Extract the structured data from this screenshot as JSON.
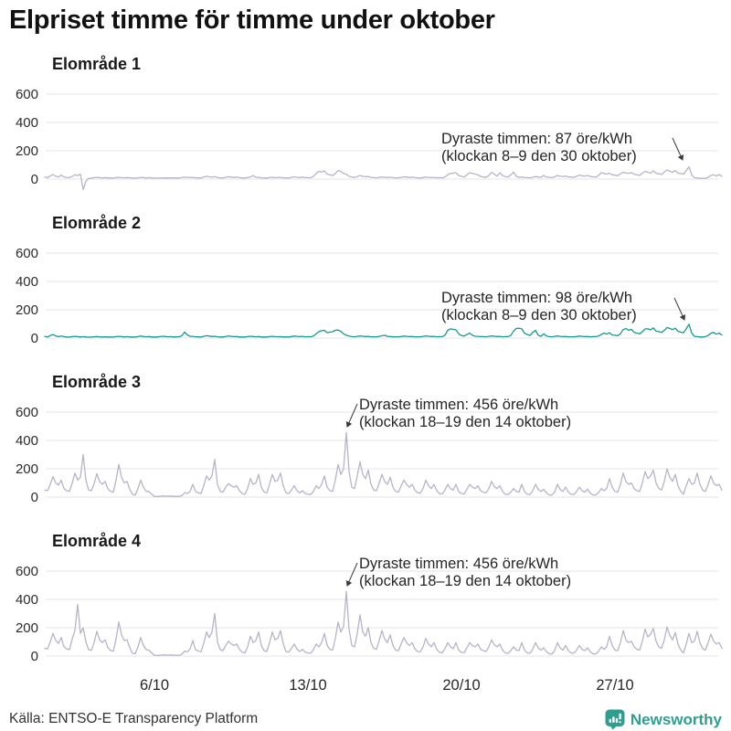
{
  "title": "Elpriset timme för timme under oktober",
  "source": "Källa: ENTSO-E Transparency Platform",
  "brand": {
    "name": "Newsworthy",
    "color": "#2f9e8f"
  },
  "colors": {
    "line_default": "#b6b4ca",
    "line_se2": "#169a8c",
    "grid": "#e4e4ea",
    "text": "#1a1a1a"
  },
  "chart_data": {
    "type": "line",
    "title": "Elpriset timme för timme under oktober",
    "unit": "öre/kWh",
    "resolution_hours": 3,
    "x_range": [
      "1/10",
      "31/10"
    ],
    "ylim": [
      -100,
      650
    ],
    "grid": true,
    "yticks": [
      "600",
      "400",
      "200",
      "0"
    ],
    "xticks": [
      "6/10",
      "13/10",
      "20/10",
      "27/10"
    ],
    "xtick_days": [
      6,
      13,
      20,
      27
    ],
    "panels": [
      {
        "label": "Elområde 1",
        "color": "#b6b4ca",
        "max_value": 87,
        "annotation": {
          "line1": "Dyraste timmen: 87 öre/kWh",
          "line2": "(klockan 8–9 den 30 oktober)"
        },
        "values": [
          15,
          10,
          22,
          32,
          20,
          14,
          28,
          15,
          12,
          10,
          20,
          30,
          25,
          35,
          -75,
          -15,
          5,
          6,
          10,
          12,
          10,
          8,
          10,
          8,
          8,
          7,
          10,
          12,
          10,
          9,
          11,
          9,
          8,
          7,
          9,
          11,
          10,
          8,
          10,
          8,
          7,
          7,
          8,
          9,
          8,
          8,
          9,
          8,
          8,
          8,
          10,
          14,
          12,
          10,
          12,
          9,
          9,
          8,
          14,
          20,
          16,
          13,
          18,
          11,
          9,
          8,
          12,
          17,
          14,
          11,
          14,
          10,
          8,
          8,
          11,
          15,
          25,
          12,
          13,
          9,
          8,
          8,
          10,
          13,
          11,
          10,
          12,
          9,
          9,
          8,
          12,
          16,
          13,
          11,
          14,
          10,
          10,
          9,
          20,
          40,
          55,
          50,
          58,
          35,
          30,
          25,
          40,
          60,
          55,
          40,
          35,
          20,
          15,
          12,
          18,
          25,
          20,
          16,
          18,
          12,
          10,
          9,
          12,
          15,
          13,
          11,
          13,
          10,
          9,
          9,
          12,
          16,
          14,
          11,
          14,
          10,
          9,
          8,
          11,
          14,
          12,
          10,
          12,
          9,
          10,
          9,
          14,
          30,
          40,
          42,
          45,
          25,
          20,
          15,
          30,
          45,
          40,
          35,
          30,
          18,
          15,
          12,
          25,
          48,
          35,
          20,
          45,
          25,
          18,
          14,
          30,
          50,
          20,
          12,
          15,
          10,
          10,
          9,
          13,
          18,
          15,
          12,
          25,
          15,
          12,
          10,
          16,
          25,
          20,
          18,
          22,
          15,
          14,
          12,
          20,
          28,
          24,
          20,
          26,
          18,
          16,
          14,
          25,
          45,
          40,
          35,
          42,
          30,
          28,
          24,
          38,
          48,
          44,
          40,
          46,
          34,
          30,
          26,
          42,
          55,
          48,
          42,
          58,
          40,
          38,
          32,
          50,
          65,
          55,
          48,
          60,
          42,
          40,
          35,
          60,
          87,
          30,
          10,
          8,
          6,
          5,
          6,
          12,
          25,
          30,
          22,
          32,
          20
        ]
      },
      {
        "label": "Elområde 2",
        "color": "#169a8c",
        "max_value": 98,
        "annotation": {
          "line1": "Dyraste timmen: 98 öre/kWh",
          "line2": "(klockan 8–9 den 30 oktober)"
        },
        "values": [
          12,
          8,
          18,
          25,
          15,
          10,
          14,
          10,
          8,
          7,
          10,
          12,
          10,
          8,
          10,
          8,
          7,
          7,
          9,
          11,
          9,
          8,
          9,
          8,
          8,
          7,
          10,
          12,
          10,
          8,
          10,
          8,
          8,
          8,
          10,
          14,
          11,
          9,
          11,
          8,
          8,
          8,
          10,
          13,
          11,
          9,
          10,
          8,
          9,
          9,
          16,
          42,
          22,
          12,
          12,
          9,
          9,
          8,
          12,
          17,
          14,
          11,
          13,
          9,
          8,
          8,
          11,
          15,
          12,
          10,
          11,
          8,
          8,
          8,
          10,
          13,
          11,
          9,
          11,
          8,
          8,
          8,
          10,
          12,
          10,
          9,
          10,
          8,
          9,
          8,
          11,
          14,
          12,
          10,
          12,
          9,
          10,
          9,
          15,
          30,
          45,
          52,
          55,
          38,
          42,
          45,
          55,
          57,
          48,
          30,
          20,
          14,
          10,
          9,
          12,
          15,
          13,
          11,
          12,
          9,
          9,
          9,
          12,
          16,
          20,
          12,
          11,
          9,
          9,
          9,
          11,
          14,
          12,
          10,
          11,
          9,
          9,
          9,
          12,
          15,
          13,
          11,
          12,
          9,
          10,
          10,
          20,
          55,
          65,
          62,
          58,
          30,
          18,
          14,
          25,
          35,
          20,
          13,
          12,
          10,
          10,
          9,
          12,
          15,
          13,
          11,
          12,
          9,
          10,
          10,
          18,
          50,
          68,
          70,
          65,
          35,
          25,
          18,
          40,
          55,
          20,
          12,
          30,
          15,
          10,
          9,
          12,
          15,
          12,
          10,
          11,
          9,
          9,
          9,
          11,
          14,
          12,
          10,
          11,
          9,
          10,
          10,
          14,
          25,
          35,
          28,
          38,
          22,
          20,
          16,
          30,
          60,
          68,
          55,
          62,
          40,
          35,
          30,
          45,
          65,
          65,
          58,
          72,
          50,
          45,
          40,
          55,
          75,
          68,
          60,
          70,
          48,
          42,
          38,
          65,
          98,
          35,
          12,
          10,
          8,
          8,
          10,
          18,
          35,
          40,
          28,
          35,
          22
        ]
      },
      {
        "label": "Elområde 3",
        "color": "#b6b4ca",
        "max_value": 456,
        "annotation": {
          "line1": "Dyraste timmen: 456 öre/kWh",
          "line2": "(klockan 18–19 den 14 oktober)"
        },
        "values": [
          50,
          45,
          90,
          145,
          100,
          85,
          120,
          60,
          45,
          40,
          100,
          170,
          120,
          140,
          300,
          120,
          50,
          45,
          95,
          165,
          110,
          90,
          110,
          60,
          40,
          35,
          120,
          230,
          140,
          100,
          110,
          55,
          20,
          15,
          60,
          120,
          70,
          40,
          40,
          20,
          5,
          4,
          6,
          8,
          7,
          6,
          8,
          5,
          5,
          5,
          10,
          30,
          25,
          40,
          90,
          40,
          30,
          25,
          80,
          150,
          120,
          150,
          265,
          90,
          40,
          35,
          70,
          95,
          80,
          70,
          80,
          45,
          25,
          20,
          60,
          130,
          90,
          100,
          160,
          70,
          35,
          30,
          90,
          160,
          110,
          120,
          170,
          80,
          30,
          25,
          50,
          80,
          45,
          30,
          45,
          25,
          20,
          18,
          40,
          80,
          60,
          90,
          150,
          70,
          45,
          40,
          120,
          230,
          160,
          200,
          456,
          180,
          70,
          60,
          150,
          250,
          160,
          130,
          190,
          90,
          50,
          45,
          100,
          160,
          110,
          90,
          140,
          70,
          40,
          35,
          80,
          120,
          90,
          70,
          90,
          50,
          30,
          28,
          60,
          120,
          80,
          60,
          90,
          45,
          25,
          22,
          50,
          90,
          60,
          50,
          90,
          40,
          25,
          22,
          55,
          90,
          70,
          60,
          80,
          45,
          35,
          30,
          60,
          110,
          75,
          60,
          80,
          40,
          20,
          18,
          35,
          60,
          40,
          35,
          90,
          40,
          20,
          18,
          45,
          90,
          55,
          40,
          55,
          30,
          15,
          14,
          35,
          90,
          55,
          40,
          70,
          35,
          20,
          18,
          40,
          70,
          45,
          35,
          55,
          28,
          15,
          14,
          30,
          60,
          45,
          60,
          130,
          70,
          40,
          35,
          90,
          170,
          110,
          90,
          100,
          60,
          45,
          40,
          100,
          180,
          130,
          150,
          190,
          100,
          60,
          50,
          110,
          200,
          140,
          110,
          160,
          80,
          40,
          20,
          80,
          130,
          90,
          100,
          170,
          90,
          50,
          40,
          90,
          150,
          100,
          80,
          90,
          50
        ]
      },
      {
        "label": "Elområde 4",
        "color": "#b6b4ca",
        "max_value": 456,
        "annotation": {
          "line1": "Dyraste timmen: 456 öre/kWh",
          "line2": "(klockan 18–19 den 14 oktober)"
        },
        "values": [
          55,
          50,
          100,
          160,
          110,
          90,
          130,
          65,
          50,
          45,
          120,
          180,
          365,
          160,
          200,
          100,
          45,
          40,
          95,
          175,
          115,
          95,
          115,
          60,
          40,
          35,
          120,
          240,
          150,
          110,
          115,
          58,
          20,
          16,
          65,
          130,
          75,
          45,
          42,
          22,
          5,
          4,
          6,
          9,
          8,
          6,
          9,
          5,
          6,
          6,
          12,
          35,
          30,
          50,
          110,
          45,
          35,
          30,
          90,
          170,
          130,
          170,
          300,
          100,
          45,
          38,
          75,
          105,
          85,
          75,
          85,
          48,
          28,
          22,
          65,
          140,
          95,
          110,
          170,
          75,
          38,
          32,
          95,
          170,
          115,
          125,
          180,
          85,
          32,
          27,
          55,
          85,
          48,
          32,
          48,
          27,
          22,
          20,
          45,
          85,
          65,
          95,
          160,
          75,
          48,
          42,
          125,
          240,
          170,
          210,
          456,
          190,
          75,
          65,
          160,
          290,
          170,
          140,
          200,
          95,
          55,
          48,
          110,
          180,
          120,
          95,
          150,
          75,
          42,
          38,
          85,
          130,
          95,
          75,
          95,
          52,
          32,
          30,
          65,
          125,
          85,
          65,
          95,
          48,
          26,
          23,
          52,
          95,
          65,
          52,
          95,
          42,
          26,
          23,
          58,
          95,
          75,
          65,
          85,
          48,
          38,
          32,
          65,
          115,
          80,
          65,
          85,
          42,
          22,
          20,
          38,
          65,
          42,
          38,
          95,
          42,
          22,
          20,
          48,
          95,
          58,
          42,
          58,
          32,
          16,
          15,
          38,
          95,
          58,
          42,
          75,
          38,
          22,
          20,
          42,
          75,
          48,
          38,
          58,
          30,
          16,
          15,
          32,
          65,
          48,
          65,
          140,
          75,
          42,
          38,
          95,
          180,
          115,
          95,
          105,
          65,
          48,
          42,
          105,
          190,
          135,
          155,
          195,
          105,
          65,
          55,
          115,
          205,
          145,
          115,
          165,
          85,
          42,
          22,
          85,
          160,
          95,
          105,
          175,
          95,
          52,
          42,
          95,
          155,
          105,
          85,
          95,
          55
        ]
      }
    ]
  }
}
